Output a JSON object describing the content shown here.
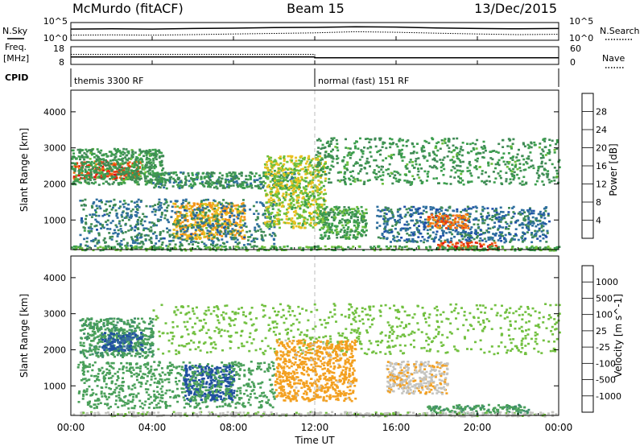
{
  "header": {
    "station": "McMurdo (fitACF)",
    "beam": "Beam 15",
    "date": "13/Dec/2015"
  },
  "summary_labels": {
    "nsky": "N.Sky",
    "nsearch": "N.Search",
    "freq": "Freq.",
    "freq_unit": "[MHz]",
    "nave": "Nave",
    "cpid": "CPID",
    "noise_ticks_left": [
      "10^5",
      "10^0"
    ],
    "noise_ticks_right": [
      "10^5",
      "10^0"
    ],
    "freq_ticks": [
      "18",
      "8"
    ],
    "nave_ticks": [
      "60",
      "0"
    ]
  },
  "cpid_segments": [
    {
      "label": "themis 3300 RF",
      "start_hour": 0
    },
    {
      "label": "normal (fast) 151 RF",
      "start_hour": 12
    }
  ],
  "x_axis": {
    "label": "Time UT",
    "ticks": [
      "00:00",
      "04:00",
      "08:00",
      "12:00",
      "16:00",
      "20:00",
      "00:00"
    ],
    "tick_hours": [
      0,
      4,
      8,
      12,
      16,
      20,
      24
    ]
  },
  "colors": {
    "power_scale": [
      "#1010e0",
      "#1f4fa8",
      "#2e6e9e",
      "#3f8a55",
      "#3c9e4e",
      "#6cbf3c",
      "#e8c020",
      "#f39418",
      "#f07010",
      "#e83a10",
      "#e01010"
    ],
    "velocity_scale": [
      "#2038c0",
      "#2050a0",
      "#3a6ea0",
      "#3e8e6a",
      "#4aa05a",
      "#72c040",
      "#c4c4c0",
      "#f3a020",
      "#f38a12",
      "#f06a10",
      "#e02010"
    ]
  },
  "chart_data": [
    {
      "type": "line",
      "name": "noise-panel",
      "xlim": [
        0,
        24
      ],
      "series": [
        {
          "name": "N.Sky",
          "style": "solid",
          "x": [
            0,
            2,
            4,
            6,
            8,
            10,
            12,
            14,
            16,
            18,
            20,
            22,
            24
          ],
          "y": [
            3.3,
            3.4,
            3.3,
            3.5,
            3.6,
            3.8,
            3.9,
            4.1,
            4.0,
            3.7,
            3.5,
            3.4,
            3.5
          ]
        },
        {
          "name": "N.Search",
          "style": "dotted",
          "x": [
            0,
            2,
            4,
            6,
            8,
            10,
            12,
            14,
            16,
            18,
            20,
            22,
            24
          ],
          "y": [
            1.2,
            1.3,
            1.2,
            1.4,
            1.6,
            1.8,
            2.0,
            2.4,
            2.2,
            1.9,
            1.6,
            1.4,
            1.5
          ]
        }
      ]
    },
    {
      "type": "line",
      "name": "freq-nave-panel",
      "xlim": [
        0,
        24
      ],
      "series": [
        {
          "name": "Freq.",
          "style": "solid",
          "x": [
            0,
            12,
            12,
            24
          ],
          "y": [
            12,
            12,
            11.5,
            11.5
          ]
        },
        {
          "name": "Nave",
          "style": "dotted",
          "x": [
            0,
            12,
            12,
            24
          ],
          "y": [
            35,
            35,
            20,
            20
          ]
        }
      ]
    },
    {
      "type": "heatmap",
      "name": "power",
      "ylabel": "Slant Range [km]",
      "colorbar_label": "Power [dB]",
      "colorbar_ticks": [
        4,
        8,
        12,
        16,
        20,
        24,
        28
      ],
      "ylim": [
        180,
        4600
      ],
      "yticks": [
        1000,
        2000,
        3000,
        4000
      ],
      "xlim": [
        0,
        24
      ],
      "regions": [
        {
          "t0": 0.1,
          "t1": 3.4,
          "r0": 2150,
          "r1": 2650,
          "value": 27
        },
        {
          "t0": 0.0,
          "t1": 4.5,
          "r0": 2000,
          "r1": 3000,
          "value": 12
        },
        {
          "t0": 4.0,
          "t1": 11.0,
          "r0": 1900,
          "r1": 2350,
          "value": 11
        },
        {
          "t0": 5.0,
          "t1": 8.5,
          "r0": 500,
          "r1": 1500,
          "value": 20
        },
        {
          "t0": 0.4,
          "t1": 10.0,
          "r0": 300,
          "r1": 1600,
          "value": 9
        },
        {
          "t0": 9.5,
          "t1": 12.5,
          "r0": 800,
          "r1": 2800,
          "value": 17
        },
        {
          "t0": 12.0,
          "t1": 24.0,
          "r0": 2000,
          "r1": 3300,
          "value": 12
        },
        {
          "t0": 12.2,
          "t1": 14.5,
          "r0": 500,
          "r1": 1400,
          "value": 13
        },
        {
          "t0": 15.0,
          "t1": 23.5,
          "r0": 400,
          "r1": 1400,
          "value": 8
        },
        {
          "t0": 17.5,
          "t1": 19.5,
          "r0": 800,
          "r1": 1200,
          "value": 24
        },
        {
          "t0": 18.0,
          "t1": 21.0,
          "r0": 200,
          "r1": 420,
          "value": 27
        },
        {
          "t0": 0.0,
          "t1": 24.0,
          "r0": 180,
          "r1": 300,
          "value": 14
        }
      ]
    },
    {
      "type": "heatmap",
      "name": "velocity",
      "ylabel": "Slant Range [km]",
      "colorbar_label": "Velocity [m s^-1]",
      "colorbar_ticks": [
        1000,
        500,
        100,
        25,
        -25,
        -100,
        -500,
        -1000
      ],
      "ylim": [
        180,
        4600
      ],
      "yticks": [
        1000,
        2000,
        3000,
        4000
      ],
      "xlim": [
        0,
        24
      ],
      "regions": [
        {
          "t0": 0.4,
          "t1": 4.0,
          "r0": 1800,
          "r1": 2900,
          "value": 300
        },
        {
          "t0": 1.5,
          "t1": 3.5,
          "r0": 2000,
          "r1": 2500,
          "value": 800
        },
        {
          "t0": 5.5,
          "t1": 8.0,
          "r0": 600,
          "r1": 1600,
          "value": 900
        },
        {
          "t0": 0.3,
          "t1": 10.0,
          "r0": 400,
          "r1": 1700,
          "value": 200
        },
        {
          "t0": 4.0,
          "t1": 24.0,
          "r0": 1900,
          "r1": 3300,
          "value": 0
        },
        {
          "t0": 10.0,
          "t1": 14.0,
          "r0": 600,
          "r1": 2300,
          "value": -400
        },
        {
          "t0": 15.5,
          "t1": 18.5,
          "r0": 800,
          "r1": 1700,
          "value": -300
        },
        {
          "t0": 17.5,
          "t1": 22.5,
          "r0": 250,
          "r1": 500,
          "value": 300
        },
        {
          "t0": 0.0,
          "t1": 24.0,
          "r0": 180,
          "r1": 300,
          "value": -150
        }
      ]
    }
  ]
}
